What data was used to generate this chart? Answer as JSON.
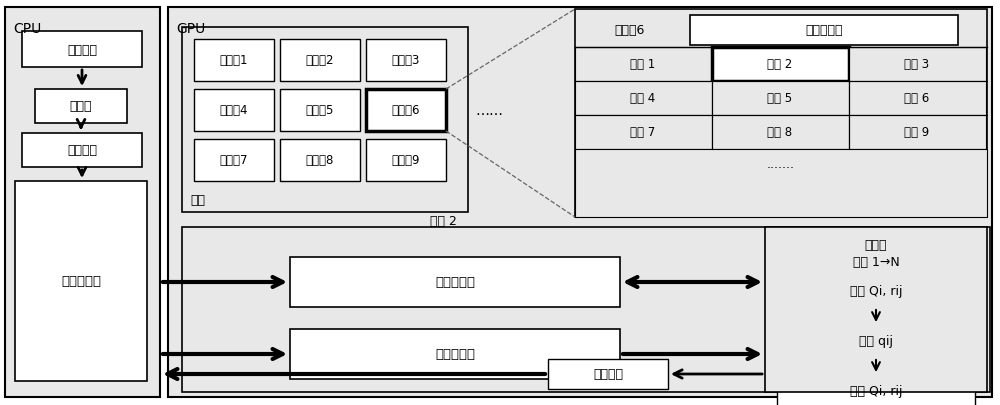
{
  "cpu_label": "CPU",
  "gpu_label": "GPU",
  "thread2_label": "线程 2",
  "grid_label": "网格",
  "thread_block6_label": "线程兵6",
  "shared_mem_label": "共享存储器",
  "source_gen": "信源生成",
  "encoder": "编码器",
  "channel": "经过信道",
  "kernel_ctrl": "核函数控制",
  "global_mem": "全局存储器",
  "const_mem": "常数存储器",
  "data_stats": "数据统计",
  "decoder_label": "译码器",
  "iter_label": "迭代 1→N",
  "get_qirij": "获得 Qi, rij",
  "calc_qij": "计算 qij",
  "update_qirij": "更新 Qi, rij",
  "thread_blocks": [
    "线程兵1",
    "线程兵2",
    "线程兵3",
    "线程兵4",
    "线程兵5",
    "线程兵6",
    "线程兵7",
    "线程兵8",
    "线程兵9"
  ],
  "threads_row1": [
    "线程 1",
    "线程 2",
    "线程 3"
  ],
  "threads_row2": [
    "线程 4",
    "线程 5",
    "线程 6"
  ],
  "threads_row3": [
    "线程 7",
    "线程 8",
    "线程 9"
  ],
  "dots": ".......",
  "bg_gray": "#e8e8e8",
  "white": "#ffffff",
  "black": "#000000"
}
